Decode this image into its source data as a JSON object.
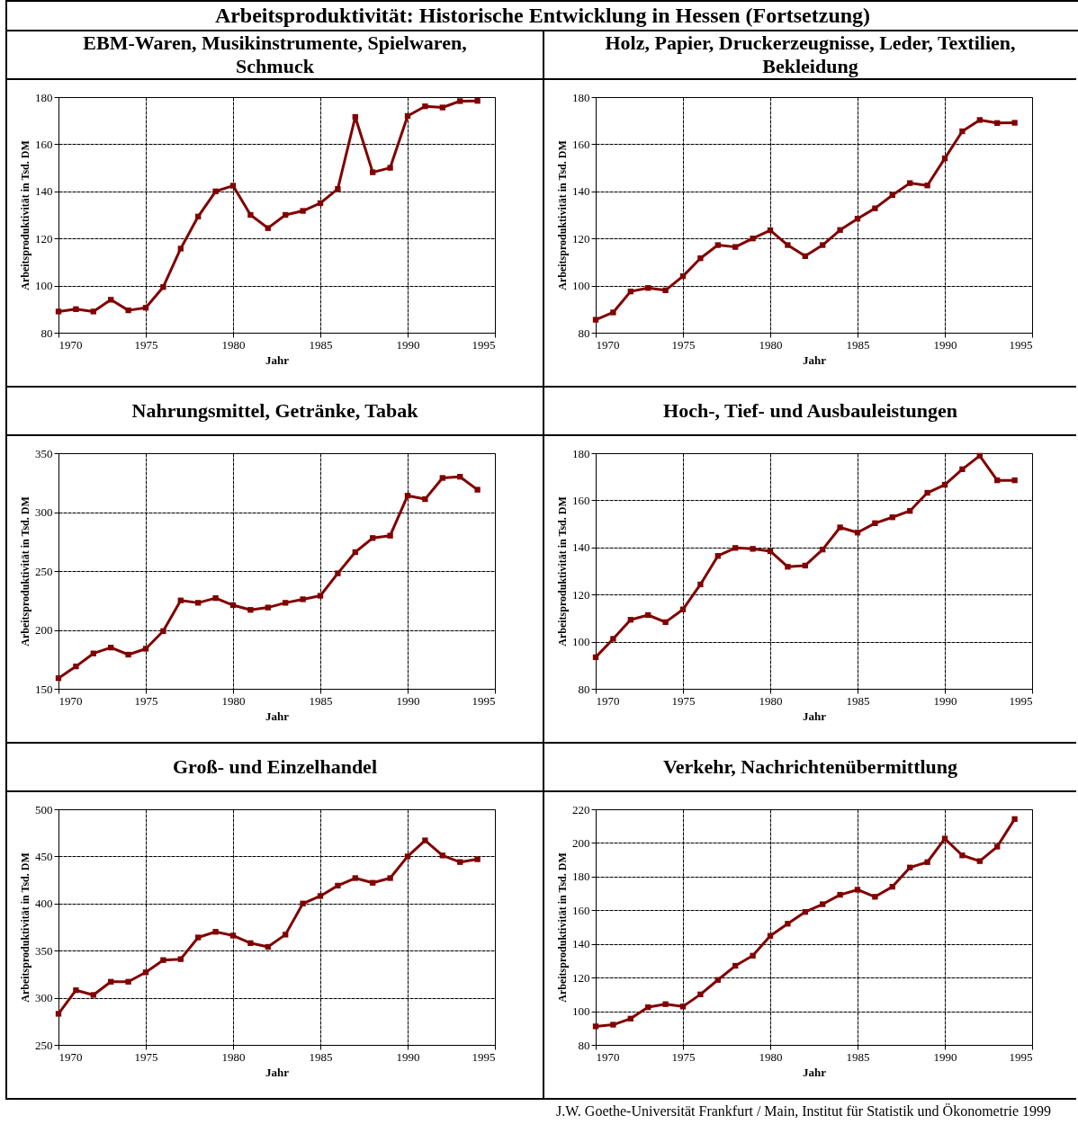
{
  "chart_data": [
    {
      "type": "line",
      "title": "Arbeitsproduktivität: Historische Entwicklung in Hessen (Fortsetzung)",
      "subtitle": "EBM-Waren, Musikinstrumente, Spielwaren, Schmuck",
      "xlabel": "Jahr",
      "ylabel": "Arbeitsproduktivität in Tsd. DM",
      "x": [
        1970,
        1971,
        1972,
        1973,
        1974,
        1975,
        1976,
        1977,
        1978,
        1979,
        1980,
        1981,
        1982,
        1983,
        1984,
        1985,
        1986,
        1987,
        1988,
        1989,
        1990,
        1991,
        1992,
        1993,
        1994
      ],
      "xlim": [
        1970,
        1995
      ],
      "xticks": [
        1970,
        1975,
        1980,
        1985,
        1990,
        1995
      ],
      "ylim": [
        80,
        180
      ],
      "yticks": [
        80,
        100,
        120,
        140,
        160,
        180
      ],
      "grid": true,
      "marker": "square",
      "series": [
        {
          "color": "#800000",
          "values": [
            89,
            90,
            89,
            94,
            89.5,
            90.6,
            99.4,
            115.7,
            129.3,
            140,
            142.4,
            130,
            124.4,
            130,
            131.7,
            135,
            141,
            171.6,
            148.1,
            150,
            172,
            176.1,
            175.6,
            178.3,
            178.4
          ]
        }
      ]
    },
    {
      "type": "line",
      "title": "Holz, Papier, Druckerzeugnisse, Leder, Textilien, Bekleidung",
      "xlabel": "Jahr",
      "ylabel": "Arbeitsproduktivität in Tsd. DM",
      "x": [
        1970,
        1971,
        1972,
        1973,
        1974,
        1975,
        1976,
        1977,
        1978,
        1979,
        1980,
        1981,
        1982,
        1983,
        1984,
        1985,
        1986,
        1987,
        1988,
        1989,
        1990,
        1991,
        1992,
        1993,
        1994
      ],
      "xlim": [
        1970,
        1995
      ],
      "xticks": [
        1970,
        1975,
        1980,
        1985,
        1990,
        1995
      ],
      "ylim": [
        80,
        180
      ],
      "yticks": [
        80,
        100,
        120,
        140,
        160,
        180
      ],
      "grid": true,
      "marker": "square",
      "series": [
        {
          "color": "#800000",
          "values": [
            85.5,
            88.6,
            97.5,
            99,
            98,
            104,
            111.6,
            117.2,
            116.4,
            120,
            123.5,
            117.2,
            112.5,
            117.2,
            123.6,
            128.4,
            132.8,
            138.4,
            143.5,
            142.5,
            154,
            165.5,
            170.3,
            169,
            169.1
          ]
        }
      ]
    },
    {
      "type": "line",
      "title": "Nahrungsmittel, Getränke, Tabak",
      "xlabel": "Jahr",
      "ylabel": "Arbeitsproduktivität in Tsd. DM",
      "x": [
        1970,
        1971,
        1972,
        1973,
        1974,
        1975,
        1976,
        1977,
        1978,
        1979,
        1980,
        1981,
        1982,
        1983,
        1984,
        1985,
        1986,
        1987,
        1988,
        1989,
        1990,
        1991,
        1992,
        1993,
        1994
      ],
      "xlim": [
        1970,
        1995
      ],
      "xticks": [
        1970,
        1975,
        1980,
        1985,
        1990,
        1995
      ],
      "ylim": [
        150,
        350
      ],
      "yticks": [
        150,
        200,
        250,
        300,
        350
      ],
      "grid": true,
      "marker": "square",
      "series": [
        {
          "color": "#800000",
          "values": [
            159,
            169,
            180,
            185,
            179,
            184,
            199,
            225,
            223,
            227,
            221,
            217,
            219,
            223,
            226,
            229,
            248,
            266,
            278,
            280,
            314,
            311,
            329,
            330,
            319
          ]
        }
      ]
    },
    {
      "type": "line",
      "title": "Hoch-, Tief- und Ausbauleistungen",
      "xlabel": "Jahr",
      "ylabel": "Arbeitsproduktivität in Tsd. DM",
      "x": [
        1970,
        1971,
        1972,
        1973,
        1974,
        1975,
        1976,
        1977,
        1978,
        1979,
        1980,
        1981,
        1982,
        1983,
        1984,
        1985,
        1986,
        1987,
        1988,
        1989,
        1990,
        1991,
        1992,
        1993,
        1994
      ],
      "xlim": [
        1970,
        1995
      ],
      "xticks": [
        1970,
        1975,
        1980,
        1985,
        1990,
        1995
      ],
      "ylim": [
        80,
        180
      ],
      "yticks": [
        80,
        100,
        120,
        140,
        160,
        180
      ],
      "grid": true,
      "marker": "square",
      "series": [
        {
          "color": "#800000",
          "values": [
            93.4,
            101.2,
            109.3,
            111.3,
            108.3,
            113.7,
            124.3,
            136.4,
            139.8,
            139.4,
            138.4,
            131.8,
            132.3,
            139.1,
            148.5,
            146.3,
            150.3,
            152.8,
            155.5,
            163.2,
            166.6,
            173.2,
            178.9,
            168.5,
            168.5
          ]
        }
      ]
    },
    {
      "type": "line",
      "title": "Groß- und Einzelhandel",
      "xlabel": "Jahr",
      "ylabel": "Arbeitsproduktivität in Tsd. DM",
      "x": [
        1970,
        1971,
        1972,
        1973,
        1974,
        1975,
        1976,
        1977,
        1978,
        1979,
        1980,
        1981,
        1982,
        1983,
        1984,
        1985,
        1986,
        1987,
        1988,
        1989,
        1990,
        1991,
        1992,
        1993,
        1994
      ],
      "xlim": [
        1970,
        1995
      ],
      "xticks": [
        1970,
        1975,
        1980,
        1985,
        1990,
        1995
      ],
      "ylim": [
        250,
        500
      ],
      "yticks": [
        250,
        300,
        350,
        400,
        450,
        500
      ],
      "grid": true,
      "marker": "square",
      "series": [
        {
          "color": "#800000",
          "values": [
            283,
            308,
            303,
            317,
            317,
            327,
            340,
            341,
            364,
            370,
            366,
            358,
            354,
            367,
            400,
            408,
            419,
            427,
            422,
            427,
            450,
            467,
            451,
            444,
            447
          ]
        }
      ]
    },
    {
      "type": "line",
      "title": "Verkehr, Nachrichtenübermittlung",
      "xlabel": "Jahr",
      "ylabel": "Arbeitsproduktivität in Tsd. DM",
      "x": [
        1970,
        1971,
        1972,
        1973,
        1974,
        1975,
        1976,
        1977,
        1978,
        1979,
        1980,
        1981,
        1982,
        1983,
        1984,
        1985,
        1986,
        1987,
        1988,
        1989,
        1990,
        1991,
        1992,
        1993,
        1994
      ],
      "xlim": [
        1970,
        1995
      ],
      "xticks": [
        1970,
        1975,
        1980,
        1985,
        1990,
        1995
      ],
      "ylim": [
        80,
        220
      ],
      "yticks": [
        80,
        100,
        120,
        140,
        160,
        180,
        200,
        220
      ],
      "grid": true,
      "marker": "square",
      "annotations": [
        "J.W. Goethe-Universität Frankfurt / Main, Institut für Statistik und Ökonometrie 1999"
      ],
      "series": [
        {
          "color": "#800000",
          "values": [
            91,
            92,
            95.6,
            102.4,
            104.2,
            102.8,
            110,
            118.6,
            127,
            133,
            144.8,
            152,
            159,
            163.6,
            169.2,
            172.2,
            168,
            174,
            185.4,
            188.6,
            202.6,
            192.6,
            189.2,
            197.8,
            214.2
          ]
        }
      ]
    }
  ]
}
